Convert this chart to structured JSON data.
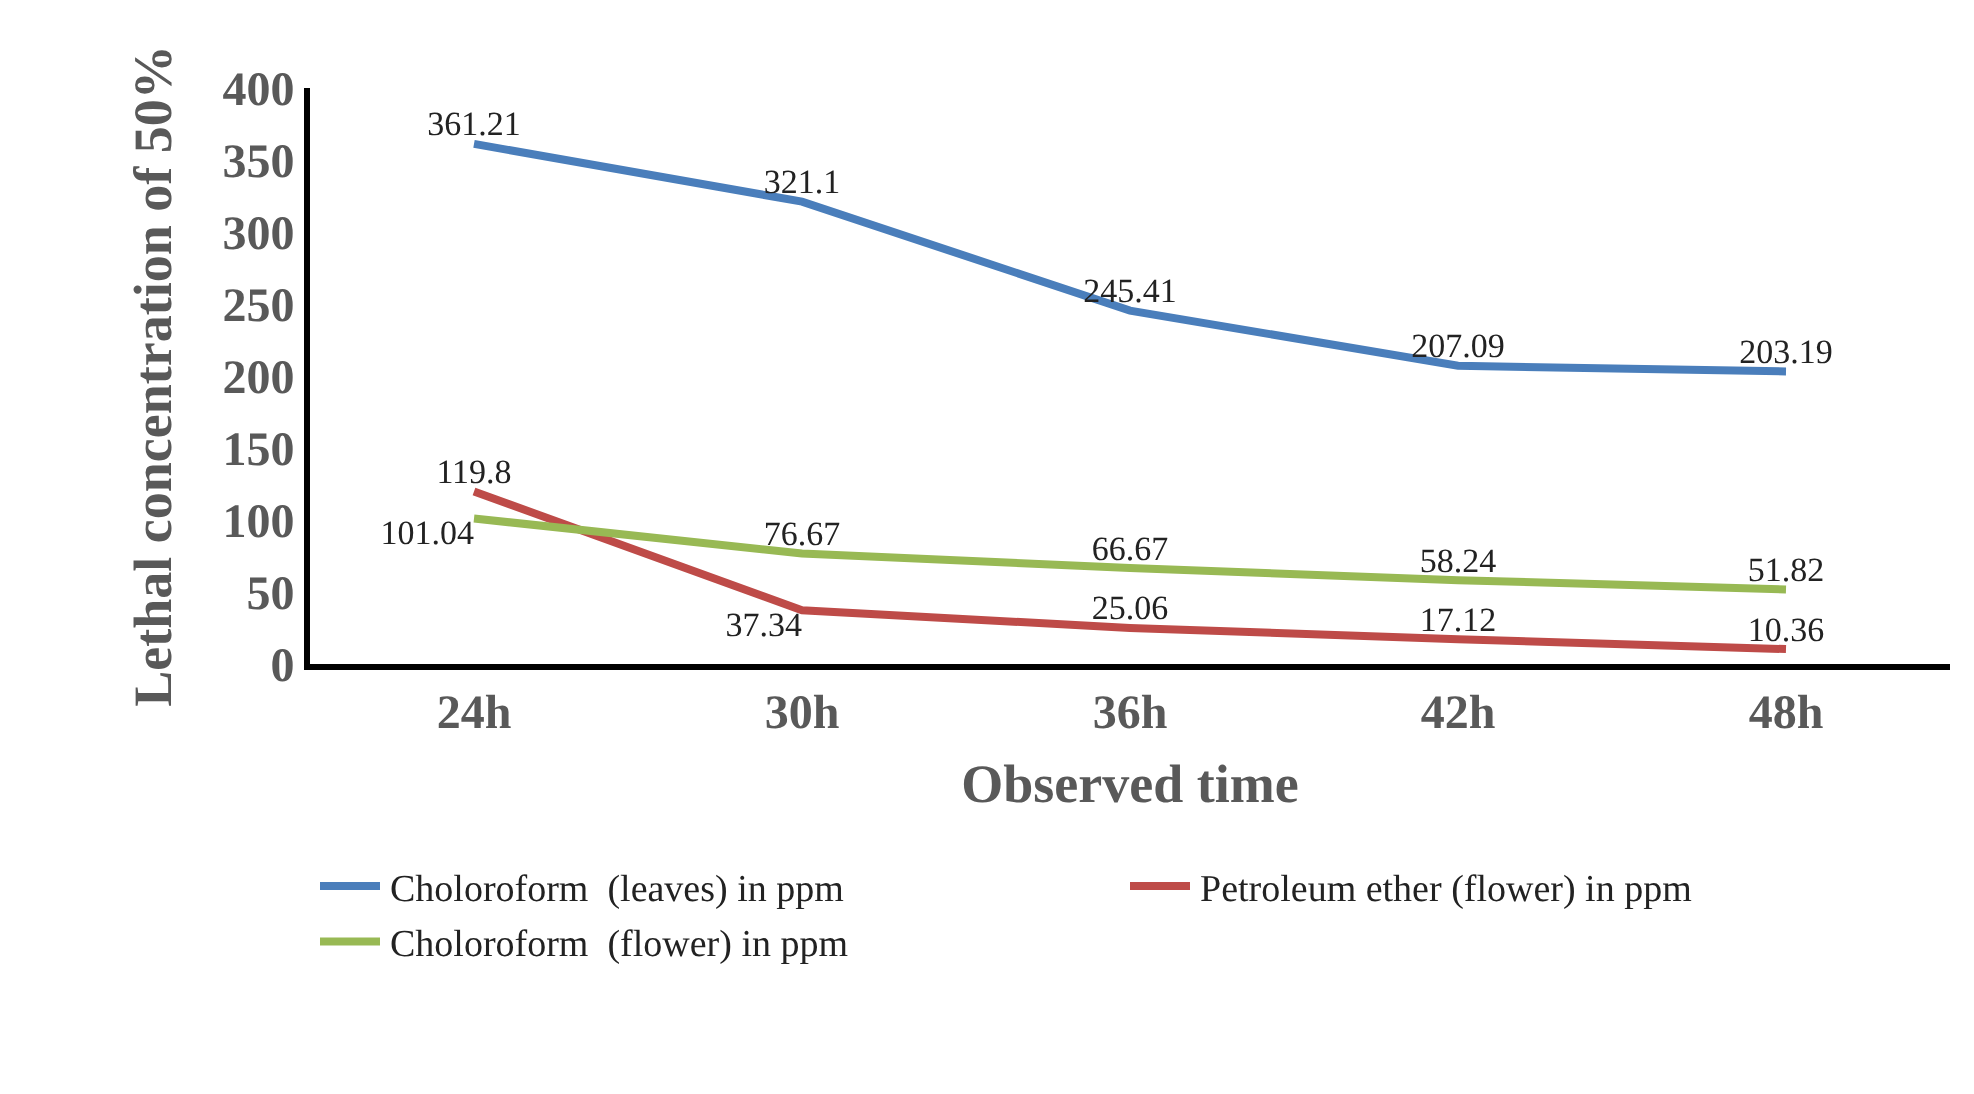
{
  "chart_data": {
    "type": "line",
    "xlabel": "Observed time",
    "ylabel": "Lethal concentration of 50%",
    "categories": [
      "24h",
      "30h",
      "36h",
      "42h",
      "48h"
    ],
    "series": [
      {
        "name": "Choloroform  (leaves) in ppm",
        "color": "#4a7ebb",
        "values": [
          361.21,
          321.1,
          245.41,
          207.09,
          203.19
        ]
      },
      {
        "name": "Petroleum ether (flower) in ppm",
        "color": "#be4b48",
        "values": [
          119.8,
          37.34,
          25.06,
          17.12,
          10.36
        ]
      },
      {
        "name": "Choloroform  (flower) in ppm",
        "color": "#98b954",
        "values": [
          101.04,
          76.67,
          66.67,
          58.24,
          51.82
        ]
      }
    ],
    "ylim": [
      0,
      400
    ],
    "yticks": [
      0,
      50,
      100,
      150,
      200,
      250,
      300,
      350,
      400
    ],
    "data_labels": true,
    "grid": false,
    "legend": "bottom",
    "marker": "none",
    "line_style": "solid"
  }
}
